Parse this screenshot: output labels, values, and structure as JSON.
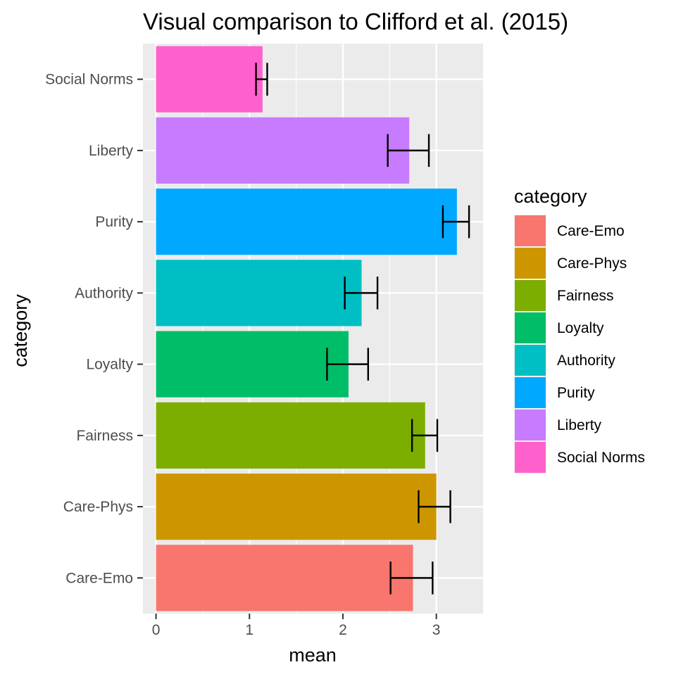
{
  "chart_data": {
    "type": "bar",
    "orientation": "horizontal",
    "title": "Visual comparison to Clifford et al. (2015)",
    "xlabel": "mean",
    "ylabel": "category",
    "xlim": [
      -0.14,
      3.5
    ],
    "xticks": [
      "0",
      "1",
      "2",
      "3"
    ],
    "grid": true,
    "legend_position": "right",
    "legend_title": "category",
    "categories": [
      "Care-Emo",
      "Care-Phys",
      "Fairness",
      "Loyalty",
      "Authority",
      "Purity",
      "Liberty",
      "Social Norms"
    ],
    "values": [
      2.75,
      3.0,
      2.88,
      2.06,
      2.2,
      3.22,
      2.71,
      1.14
    ],
    "error_low": [
      2.51,
      2.81,
      2.74,
      1.83,
      2.02,
      3.07,
      2.48,
      1.07
    ],
    "error_high": [
      2.96,
      3.15,
      3.01,
      2.27,
      2.37,
      3.35,
      2.92,
      1.19
    ],
    "colors": [
      "#F8766D",
      "#CD9600",
      "#7CAE00",
      "#00BE67",
      "#00BFC4",
      "#00A9FF",
      "#C77CFF",
      "#FF61CC"
    ]
  }
}
